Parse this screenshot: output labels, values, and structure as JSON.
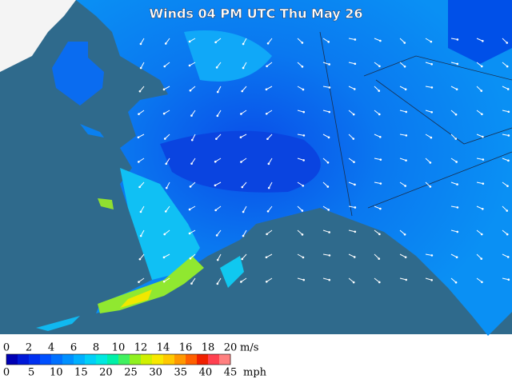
{
  "title": "Winds 04 PM UTC Thu May 26",
  "legend": {
    "colors": [
      "#0000b4",
      "#0018d8",
      "#0030f0",
      "#0050ff",
      "#0070ff",
      "#0090ff",
      "#00b0ff",
      "#00d0f8",
      "#00e8e0",
      "#00f0a8",
      "#40f060",
      "#90f020",
      "#d0f000",
      "#f8e800",
      "#ffc800",
      "#ff9800",
      "#ff6000",
      "#f02000",
      "#ff4050",
      "#ff8080"
    ],
    "ms_labels": [
      "0",
      "2",
      "4",
      "6",
      "8",
      "10",
      "12",
      "14",
      "16",
      "18",
      "20"
    ],
    "ms_unit": "m/s",
    "mph_labels": [
      "0",
      "5",
      "10",
      "15",
      "20",
      "25",
      "30",
      "35",
      "40",
      "45"
    ],
    "mph_unit": "mph"
  }
}
